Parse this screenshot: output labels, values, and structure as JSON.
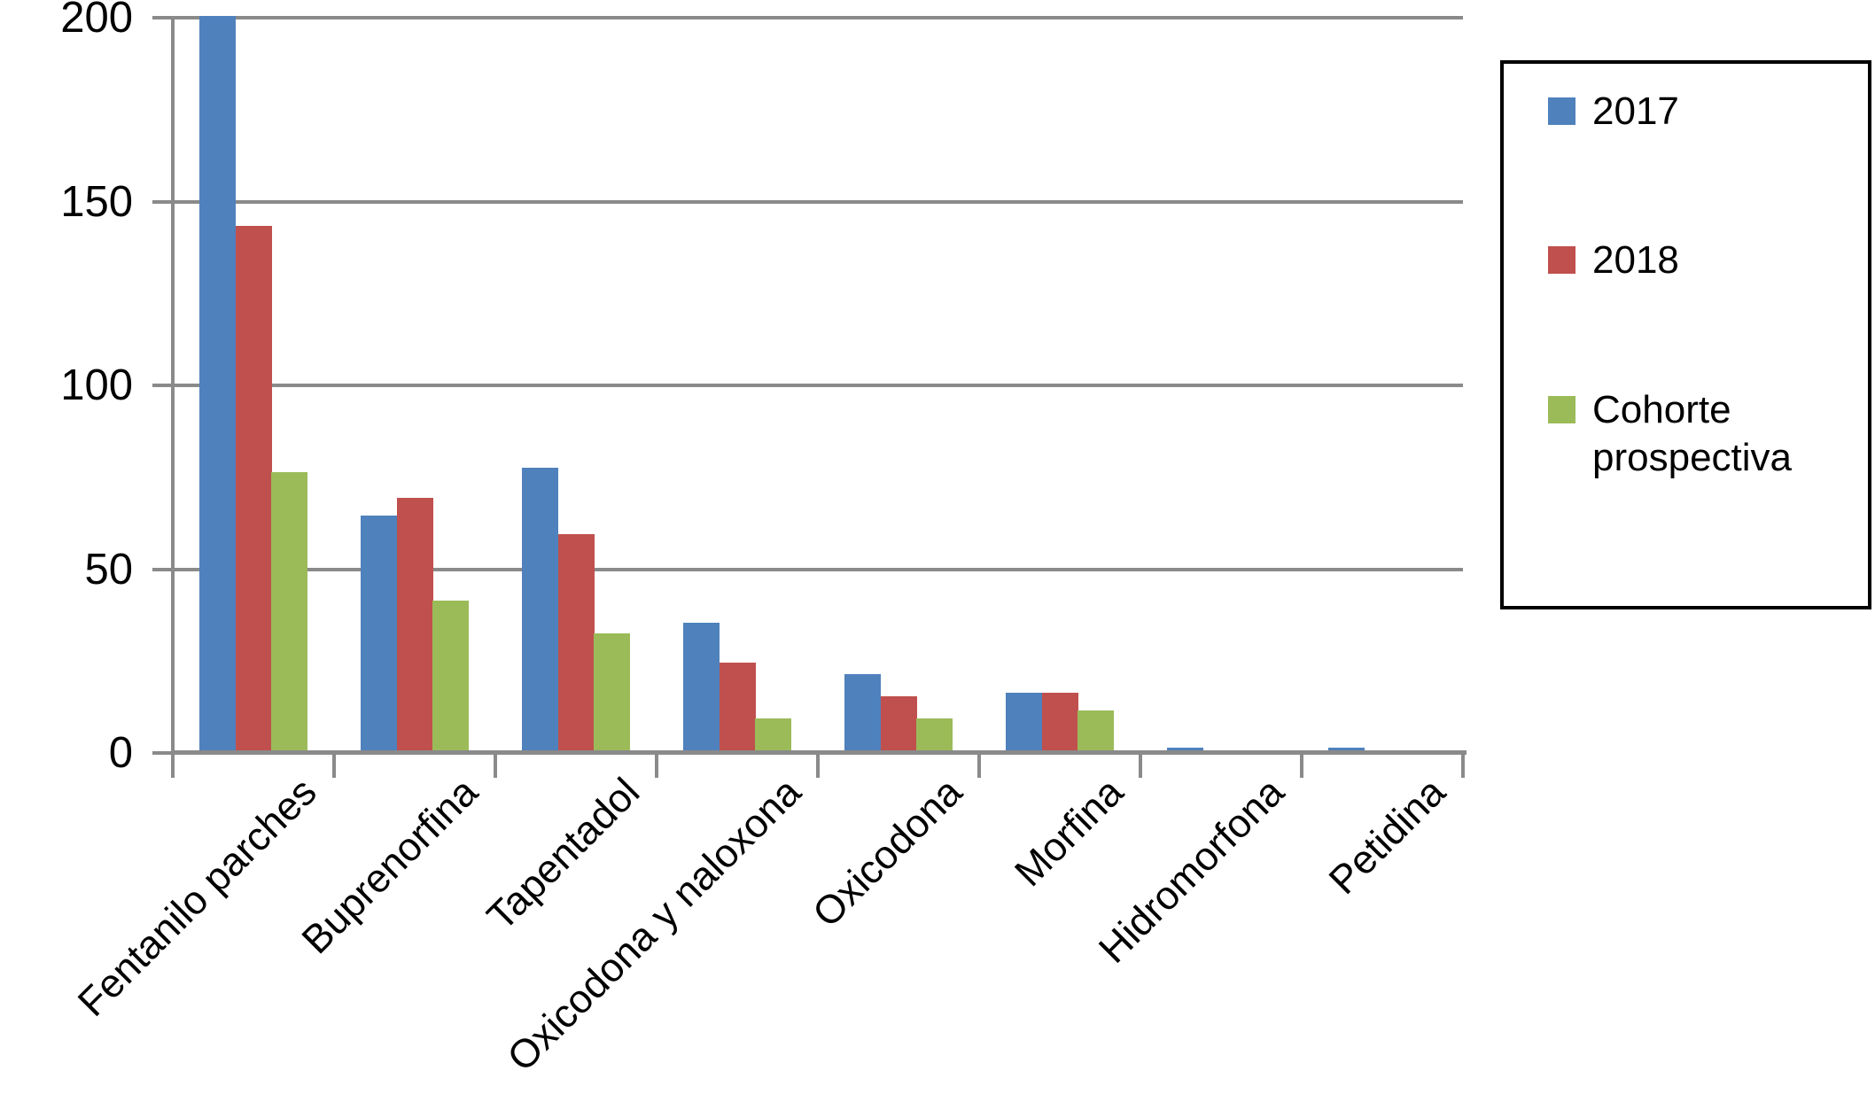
{
  "chart_data": {
    "type": "bar",
    "title": "",
    "xlabel": "",
    "ylabel": "",
    "categories": [
      "Fentanilo parches",
      "Buprenorfina",
      "Tapentadol",
      "Oxicodona y naloxona",
      "Oxicodona",
      "Morfina",
      "Hidromorfona",
      "Petidina"
    ],
    "series": [
      {
        "name": "2017",
        "color": "#4f81bd",
        "values": [
          200,
          64,
          77,
          35,
          21,
          16,
          1,
          1
        ]
      },
      {
        "name": "2018",
        "color": "#c0504d",
        "values": [
          143,
          69,
          59,
          24,
          15,
          16,
          0,
          0
        ]
      },
      {
        "name": "Cohorte prospectiva",
        "color": "#9bbb59",
        "values": [
          76,
          41,
          32,
          9,
          9,
          11,
          0,
          0
        ]
      }
    ],
    "ylim": [
      0,
      200
    ],
    "yticks": [
      0,
      50,
      100,
      150,
      200
    ],
    "grid": true,
    "legend_position": "right"
  },
  "colors": {
    "axis": "#8a8a8a",
    "gridline": "#8a8a8a",
    "text": "#000000",
    "legend_border": "#000000",
    "background": "#ffffff"
  }
}
